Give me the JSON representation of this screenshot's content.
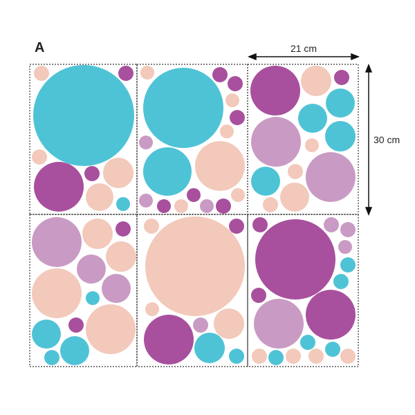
{
  "figure_label": "A",
  "width_label": "21 cm",
  "height_label": "30 cm",
  "colors": {
    "teal": "#4fc3d6",
    "magenta": "#a8509d",
    "lilac": "#c99bc4",
    "peach": "#f2c9ba",
    "border": "#333333"
  },
  "icons": [
    "width-arrow-icon",
    "height-arrow-icon"
  ]
}
